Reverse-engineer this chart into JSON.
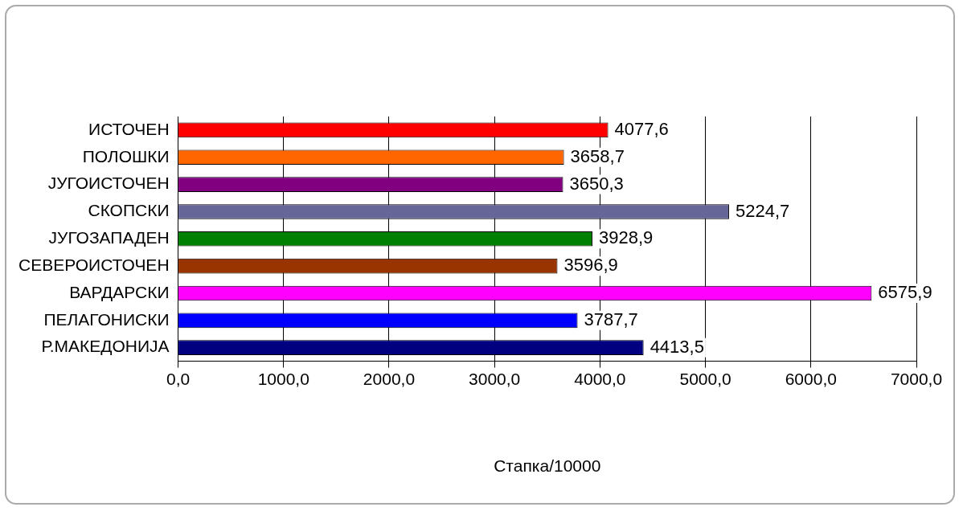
{
  "chart_data": {
    "type": "bar",
    "orientation": "horizontal",
    "xlabel": "Стапка/10000",
    "categories": [
      "ИСТОЧЕН",
      "ПОЛОШКИ",
      "ЈУГОИСТОЧЕН",
      "СКОПСКИ",
      "ЈУГОЗАПАДЕН",
      "СЕВЕРОИСТОЧЕН",
      "ВАРДАРСКИ",
      "ПЕЛАГОНИСКИ",
      "Р.МАКЕДОНИЈА"
    ],
    "values": [
      4077.6,
      3658.7,
      3650.3,
      5224.7,
      3928.9,
      3596.9,
      6575.9,
      3787.7,
      4413.5
    ],
    "value_labels": [
      "4077,6",
      "3658,7",
      "3650,3",
      "5224,7",
      "3928,9",
      "3596,9",
      "6575,9",
      "3787,7",
      "4413,5"
    ],
    "colors": [
      "#ff0000",
      "#ff6600",
      "#800080",
      "#666699",
      "#008000",
      "#993300",
      "#ff00ff",
      "#0000ff",
      "#000080"
    ],
    "xlim": [
      0,
      7000
    ],
    "xticks": [
      {
        "value": 0,
        "label": "0,0"
      },
      {
        "value": 1000,
        "label": "1000,0"
      },
      {
        "value": 2000,
        "label": "2000,0"
      },
      {
        "value": 3000,
        "label": "3000,0"
      },
      {
        "value": 4000,
        "label": "4000,0"
      },
      {
        "value": 5000,
        "label": "5000,0"
      },
      {
        "value": 6000,
        "label": "6000,0"
      },
      {
        "value": 7000,
        "label": "7000,0"
      }
    ],
    "grid": "x"
  }
}
